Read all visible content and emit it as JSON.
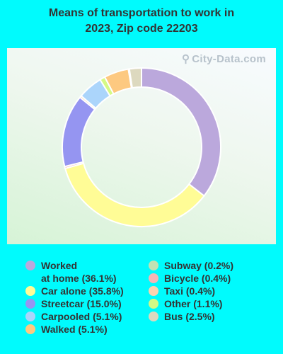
{
  "title_lines": [
    "Means of transportation to work in",
    "2023, Zip code 22203"
  ],
  "watermark": "City-Data.com",
  "chart_data": {
    "type": "pie",
    "donut": true,
    "slices": [
      {
        "label": "Worked at home",
        "label_lines": [
          "Worked",
          "at home (36.1%)"
        ],
        "value": 36.1,
        "color": "#bba8dc"
      },
      {
        "label": "Car alone",
        "label_lines": [
          "Car alone (35.8%)"
        ],
        "value": 35.8,
        "color": "#fffc96"
      },
      {
        "label": "Bicycle",
        "label_lines": [
          "Bicycle (0.4%)"
        ],
        "value": 0.4,
        "color": "#f6b5b5"
      },
      {
        "label": "Streetcar",
        "label_lines": [
          "Streetcar (15.0%)"
        ],
        "value": 15.0,
        "color": "#9595f1"
      },
      {
        "label": "Taxi",
        "label_lines": [
          "Taxi (0.4%)"
        ],
        "value": 0.4,
        "color": "#fbd3b0"
      },
      {
        "label": "Carpooled",
        "label_lines": [
          "Carpooled (5.1%)"
        ],
        "value": 5.1,
        "color": "#abd5fb"
      },
      {
        "label": "Other",
        "label_lines": [
          "Other (1.1%)"
        ],
        "value": 1.1,
        "color": "#d5f985"
      },
      {
        "label": "Walked",
        "label_lines": [
          "Walked (5.1%)"
        ],
        "value": 5.1,
        "color": "#fdc980"
      },
      {
        "label": "Subway",
        "label_lines": [
          "Subway (0.2%)"
        ],
        "value": 0.2,
        "color": "#c3e2b3"
      },
      {
        "label": "Bus",
        "label_lines": [
          "Bus (2.5%)"
        ],
        "value": 2.5,
        "color": "#ddd9bf"
      }
    ],
    "legend_columns": [
      [
        "Worked at home",
        "Car alone",
        "Streetcar",
        "Carpooled",
        "Walked"
      ],
      [
        "Subway",
        "Bicycle",
        "Taxi",
        "Other",
        "Bus"
      ]
    ],
    "legend_placement": "bottom"
  }
}
